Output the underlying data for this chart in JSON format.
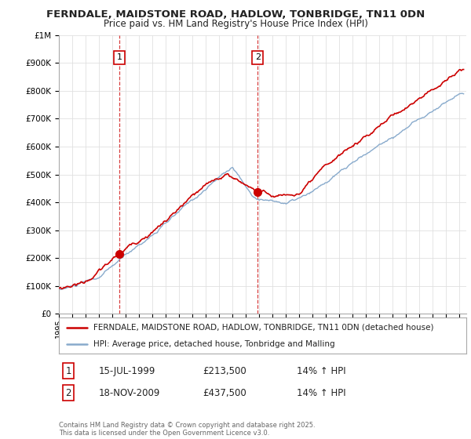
{
  "title": "FERNDALE, MAIDSTONE ROAD, HADLOW, TONBRIDGE, TN11 0DN",
  "subtitle": "Price paid vs. HM Land Registry's House Price Index (HPI)",
  "red_label": "FERNDALE, MAIDSTONE ROAD, HADLOW, TONBRIDGE, TN11 0DN (detached house)",
  "blue_label": "HPI: Average price, detached house, Tonbridge and Malling",
  "purchase1_date": "15-JUL-1999",
  "purchase1_price": "£213,500",
  "purchase1_hpi": "14% ↑ HPI",
  "purchase2_date": "18-NOV-2009",
  "purchase2_price": "£437,500",
  "purchase2_hpi": "14% ↑ HPI",
  "purchase1_year": 1999.54,
  "purchase2_year": 2009.88,
  "purchase1_value": 213500,
  "purchase2_value": 437500,
  "ylim_min": 0,
  "ylim_max": 1000000,
  "xlim_min": 1995,
  "xlim_max": 2025.5,
  "copyright": "Contains HM Land Registry data © Crown copyright and database right 2025.\nThis data is licensed under the Open Government Licence v3.0.",
  "background_color": "#ffffff",
  "grid_color": "#e0e0e0",
  "red_color": "#cc0000",
  "blue_color": "#88aacc"
}
